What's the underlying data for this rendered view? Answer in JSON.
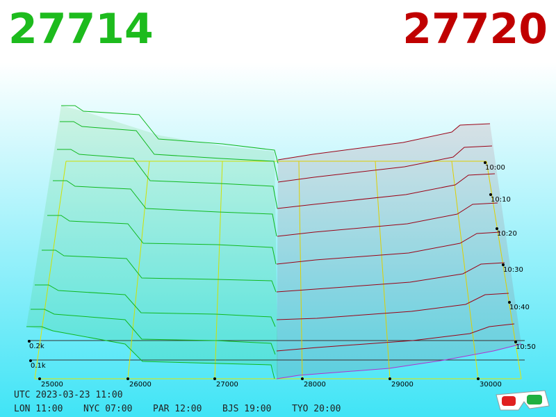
{
  "header": {
    "bid": "27714",
    "ask": "27720"
  },
  "price_axis": {
    "ticks": [
      "25000",
      "26000",
      "27000",
      "28000",
      "29000",
      "30000"
    ]
  },
  "time_axis": {
    "ticks": [
      "10:00",
      "10:10",
      "10:20",
      "10:30",
      "10:40",
      "10:50"
    ]
  },
  "depth_axis": {
    "ticks": [
      "0.2k",
      "0.1k"
    ]
  },
  "footer": {
    "utc": "UTC 2023-03-23 11:00",
    "zones": [
      "LON 11:00",
      "NYC 07:00",
      "PAR 12:00",
      "BJS 19:00",
      "TYO 20:00"
    ]
  }
}
